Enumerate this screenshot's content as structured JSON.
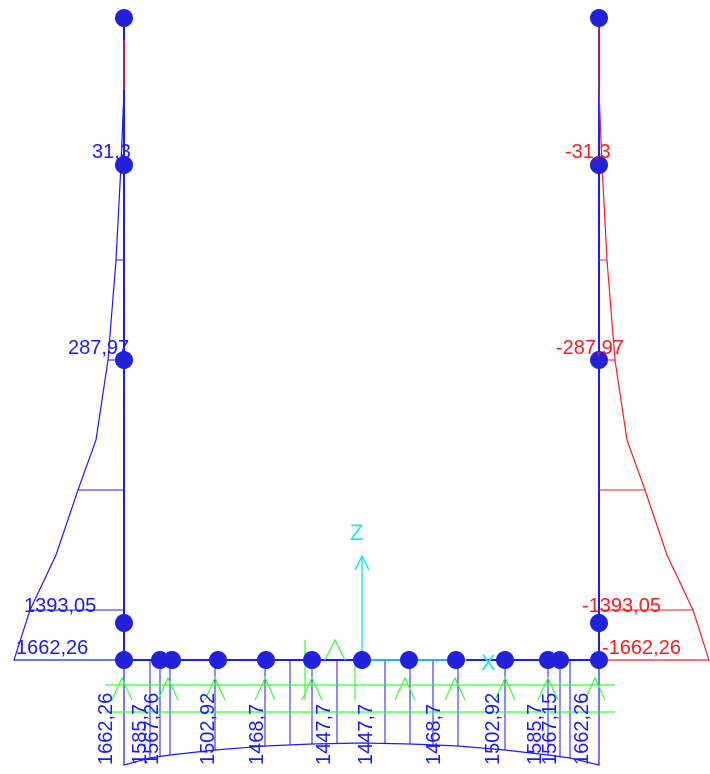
{
  "colors": {
    "blue": "#1a1aff",
    "red": "#ff1a1a",
    "green": "#33ff33",
    "cyan": "#22e6f0",
    "node": "#2222dd",
    "background": "#ffffff"
  },
  "axes": {
    "z_label": "Z",
    "x_label": "X"
  },
  "left_column": {
    "labels": [
      "31,3",
      "287,97",
      "1393,05",
      "1662,26"
    ]
  },
  "right_column": {
    "labels": [
      "-31,3",
      "-287,97",
      "-1393,05",
      "-1662,26"
    ]
  },
  "beam": {
    "labels": [
      "1662,26",
      "1585,7",
      "1567,26",
      "1502,92",
      "1468,7",
      "1447,7",
      "1447,7",
      "1468,7",
      "1502,92",
      "1585,7",
      "1567,15",
      "1662,26"
    ]
  }
}
